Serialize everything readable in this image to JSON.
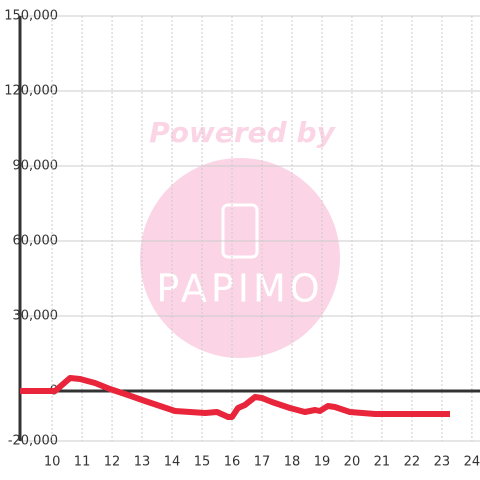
{
  "chart_data": {
    "type": "line",
    "watermark": {
      "line1": "Powered by",
      "line2": "PAPIMO"
    },
    "xlim": [
      8.93,
      24.27
    ],
    "xticks": [
      10,
      11,
      12,
      13,
      14,
      15,
      16,
      17,
      18,
      19,
      20,
      21,
      22,
      23,
      24
    ],
    "ylim": [
      -20000,
      150000
    ],
    "yticks": [
      {
        "value": -20000,
        "label": "-20,000"
      },
      0,
      {
        "value": 30000,
        "label": "30,000"
      },
      {
        "value": 60000,
        "label": "60,000"
      },
      {
        "value": 90000,
        "label": "90,000"
      },
      {
        "value": 120000,
        "label": "120,000"
      },
      {
        "value": 150000,
        "label": "150,000"
      }
    ],
    "grid": true,
    "series": [
      {
        "color": "#e8253a",
        "x": [
          8.93,
          10.1,
          10.33,
          10.6,
          10.93,
          11.43,
          11.93,
          12.43,
          13.1,
          13.6,
          14.1,
          14.6,
          15.1,
          15.5,
          15.87,
          16.0,
          16.2,
          16.43,
          16.77,
          17.0,
          17.33,
          17.93,
          18.43,
          18.77,
          18.93,
          19.2,
          19.43,
          19.93,
          20.77,
          23.27
        ],
        "values": [
          0,
          0,
          2400,
          5200,
          4800,
          3200,
          800,
          -1200,
          -4000,
          -6000,
          -8000,
          -8400,
          -8800,
          -8400,
          -10400,
          -10400,
          -6800,
          -5600,
          -2400,
          -2800,
          -4400,
          -6800,
          -8400,
          -7600,
          -8000,
          -6000,
          -6400,
          -8400,
          -9200,
          -9200
        ]
      }
    ]
  }
}
